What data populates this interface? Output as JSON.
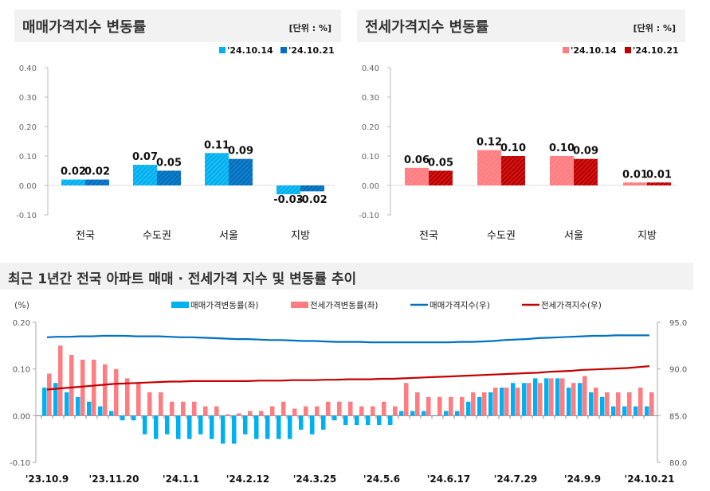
{
  "chart_data": [
    {
      "type": "bar",
      "title": "매매가격지수 변동률",
      "unit_label": "[단위 : %]",
      "categories": [
        "전국",
        "수도권",
        "서울",
        "지방"
      ],
      "series": [
        {
          "name": "'24.10.14",
          "values": [
            0.02,
            0.07,
            0.11,
            -0.03
          ],
          "color": "#00B0F0"
        },
        {
          "name": "'24.10.21",
          "values": [
            0.02,
            0.05,
            0.09,
            -0.02
          ],
          "color": "#0070C0"
        }
      ],
      "ylim": [
        -0.1,
        0.4
      ],
      "yticks": [
        "0.40",
        "0.30",
        "0.20",
        "0.10",
        "0.00",
        "-0.10"
      ],
      "legend": "top-right"
    },
    {
      "type": "bar",
      "title": "전세가격지수 변동률",
      "unit_label": "[단위 : %]",
      "categories": [
        "전국",
        "수도권",
        "서울",
        "지방"
      ],
      "series": [
        {
          "name": "'24.10.14",
          "values": [
            0.06,
            0.12,
            0.1,
            0.01
          ],
          "color": "#FF7C80"
        },
        {
          "name": "'24.10.21",
          "values": [
            0.05,
            0.1,
            0.09,
            0.01
          ],
          "color": "#C00000"
        }
      ],
      "ylim": [
        -0.1,
        0.4
      ],
      "yticks": [
        "0.40",
        "0.30",
        "0.20",
        "0.10",
        "0.00",
        "-0.10"
      ],
      "legend": "top-right"
    },
    {
      "type": "bar+line",
      "title": "최근 1년간 전국 아파트 매매 · 전세가격 지수 및 변동률 추이",
      "ylabel_left": "(%)",
      "ylim_left": [
        -0.1,
        0.2
      ],
      "yticks_left": [
        "0.20",
        "0.10",
        "0.00",
        "-0.10"
      ],
      "ylim_right": [
        80.0,
        95.0
      ],
      "yticks_right": [
        "95.0",
        "90.0",
        "85.0",
        "80.0"
      ],
      "xtick_labels": [
        "'23.10.9",
        "'23.11.20",
        "'24.1.1",
        "'24.2.12",
        "'24.3.25",
        "'24.5.6",
        "'24.6.17",
        "'24.7.29",
        "'24.9.9",
        "'24.10.21"
      ],
      "xtick_every_weeks": 6,
      "legend": "top",
      "series": [
        {
          "name": "매매가격변동률(좌)",
          "type": "bar",
          "axis": "left",
          "color": "#00B0F0",
          "values": [
            0.06,
            0.07,
            0.05,
            0.04,
            0.03,
            0.02,
            0.01,
            -0.01,
            -0.01,
            -0.04,
            -0.05,
            -0.04,
            -0.05,
            -0.05,
            -0.04,
            -0.05,
            -0.06,
            -0.06,
            -0.04,
            -0.05,
            -0.05,
            -0.05,
            -0.05,
            -0.03,
            -0.04,
            -0.03,
            -0.01,
            -0.02,
            -0.02,
            -0.02,
            -0.02,
            -0.02,
            0.01,
            0.01,
            0.01,
            0.0,
            0.01,
            0.01,
            0.03,
            0.04,
            0.05,
            0.06,
            0.07,
            0.07,
            0.08,
            0.08,
            0.08,
            0.06,
            0.07,
            0.05,
            0.04,
            0.02,
            0.02,
            0.02,
            0.02
          ]
        },
        {
          "name": "전세가격변동률(좌)",
          "type": "bar",
          "axis": "left",
          "color": "#FF7C80",
          "values": [
            0.09,
            0.15,
            0.13,
            0.12,
            0.12,
            0.11,
            0.1,
            0.08,
            0.07,
            0.05,
            0.05,
            0.03,
            0.03,
            0.03,
            0.02,
            0.02,
            0.003,
            0.005,
            0.01,
            0.01,
            0.02,
            0.03,
            0.015,
            0.02,
            0.02,
            0.03,
            0.03,
            0.03,
            0.02,
            0.02,
            0.03,
            0.02,
            0.07,
            0.05,
            0.04,
            0.04,
            0.04,
            0.04,
            0.05,
            0.05,
            0.06,
            0.06,
            0.06,
            0.07,
            0.07,
            0.08,
            0.08,
            0.07,
            0.085,
            0.06,
            0.05,
            0.05,
            0.05,
            0.06,
            0.05
          ]
        },
        {
          "name": "매매가격지수(우)",
          "type": "line",
          "axis": "right",
          "color": "#0070C0",
          "values": [
            93.4,
            93.45,
            93.45,
            93.5,
            93.5,
            93.55,
            93.55,
            93.55,
            93.5,
            93.5,
            93.5,
            93.45,
            93.4,
            93.4,
            93.35,
            93.3,
            93.25,
            93.2,
            93.2,
            93.15,
            93.1,
            93.1,
            93.05,
            93.0,
            93.0,
            92.95,
            92.9,
            92.9,
            92.9,
            92.85,
            92.85,
            92.85,
            92.85,
            92.85,
            92.85,
            92.85,
            92.85,
            92.9,
            92.9,
            92.95,
            93.0,
            93.1,
            93.15,
            93.2,
            93.3,
            93.35,
            93.4,
            93.45,
            93.5,
            93.55,
            93.55,
            93.6,
            93.6,
            93.6,
            93.6
          ]
        },
        {
          "name": "전세가격지수(우)",
          "type": "line",
          "axis": "right",
          "color": "#C00000",
          "values": [
            87.8,
            87.9,
            88.0,
            88.1,
            88.2,
            88.3,
            88.4,
            88.45,
            88.5,
            88.55,
            88.6,
            88.65,
            88.65,
            88.7,
            88.7,
            88.7,
            88.7,
            88.7,
            88.7,
            88.75,
            88.75,
            88.75,
            88.8,
            88.8,
            88.8,
            88.85,
            88.85,
            88.9,
            88.9,
            88.9,
            88.95,
            88.95,
            89.0,
            89.05,
            89.1,
            89.15,
            89.2,
            89.25,
            89.3,
            89.35,
            89.4,
            89.45,
            89.5,
            89.55,
            89.6,
            89.7,
            89.75,
            89.8,
            89.9,
            89.95,
            90.0,
            90.05,
            90.1,
            90.2,
            90.3
          ]
        }
      ]
    }
  ]
}
